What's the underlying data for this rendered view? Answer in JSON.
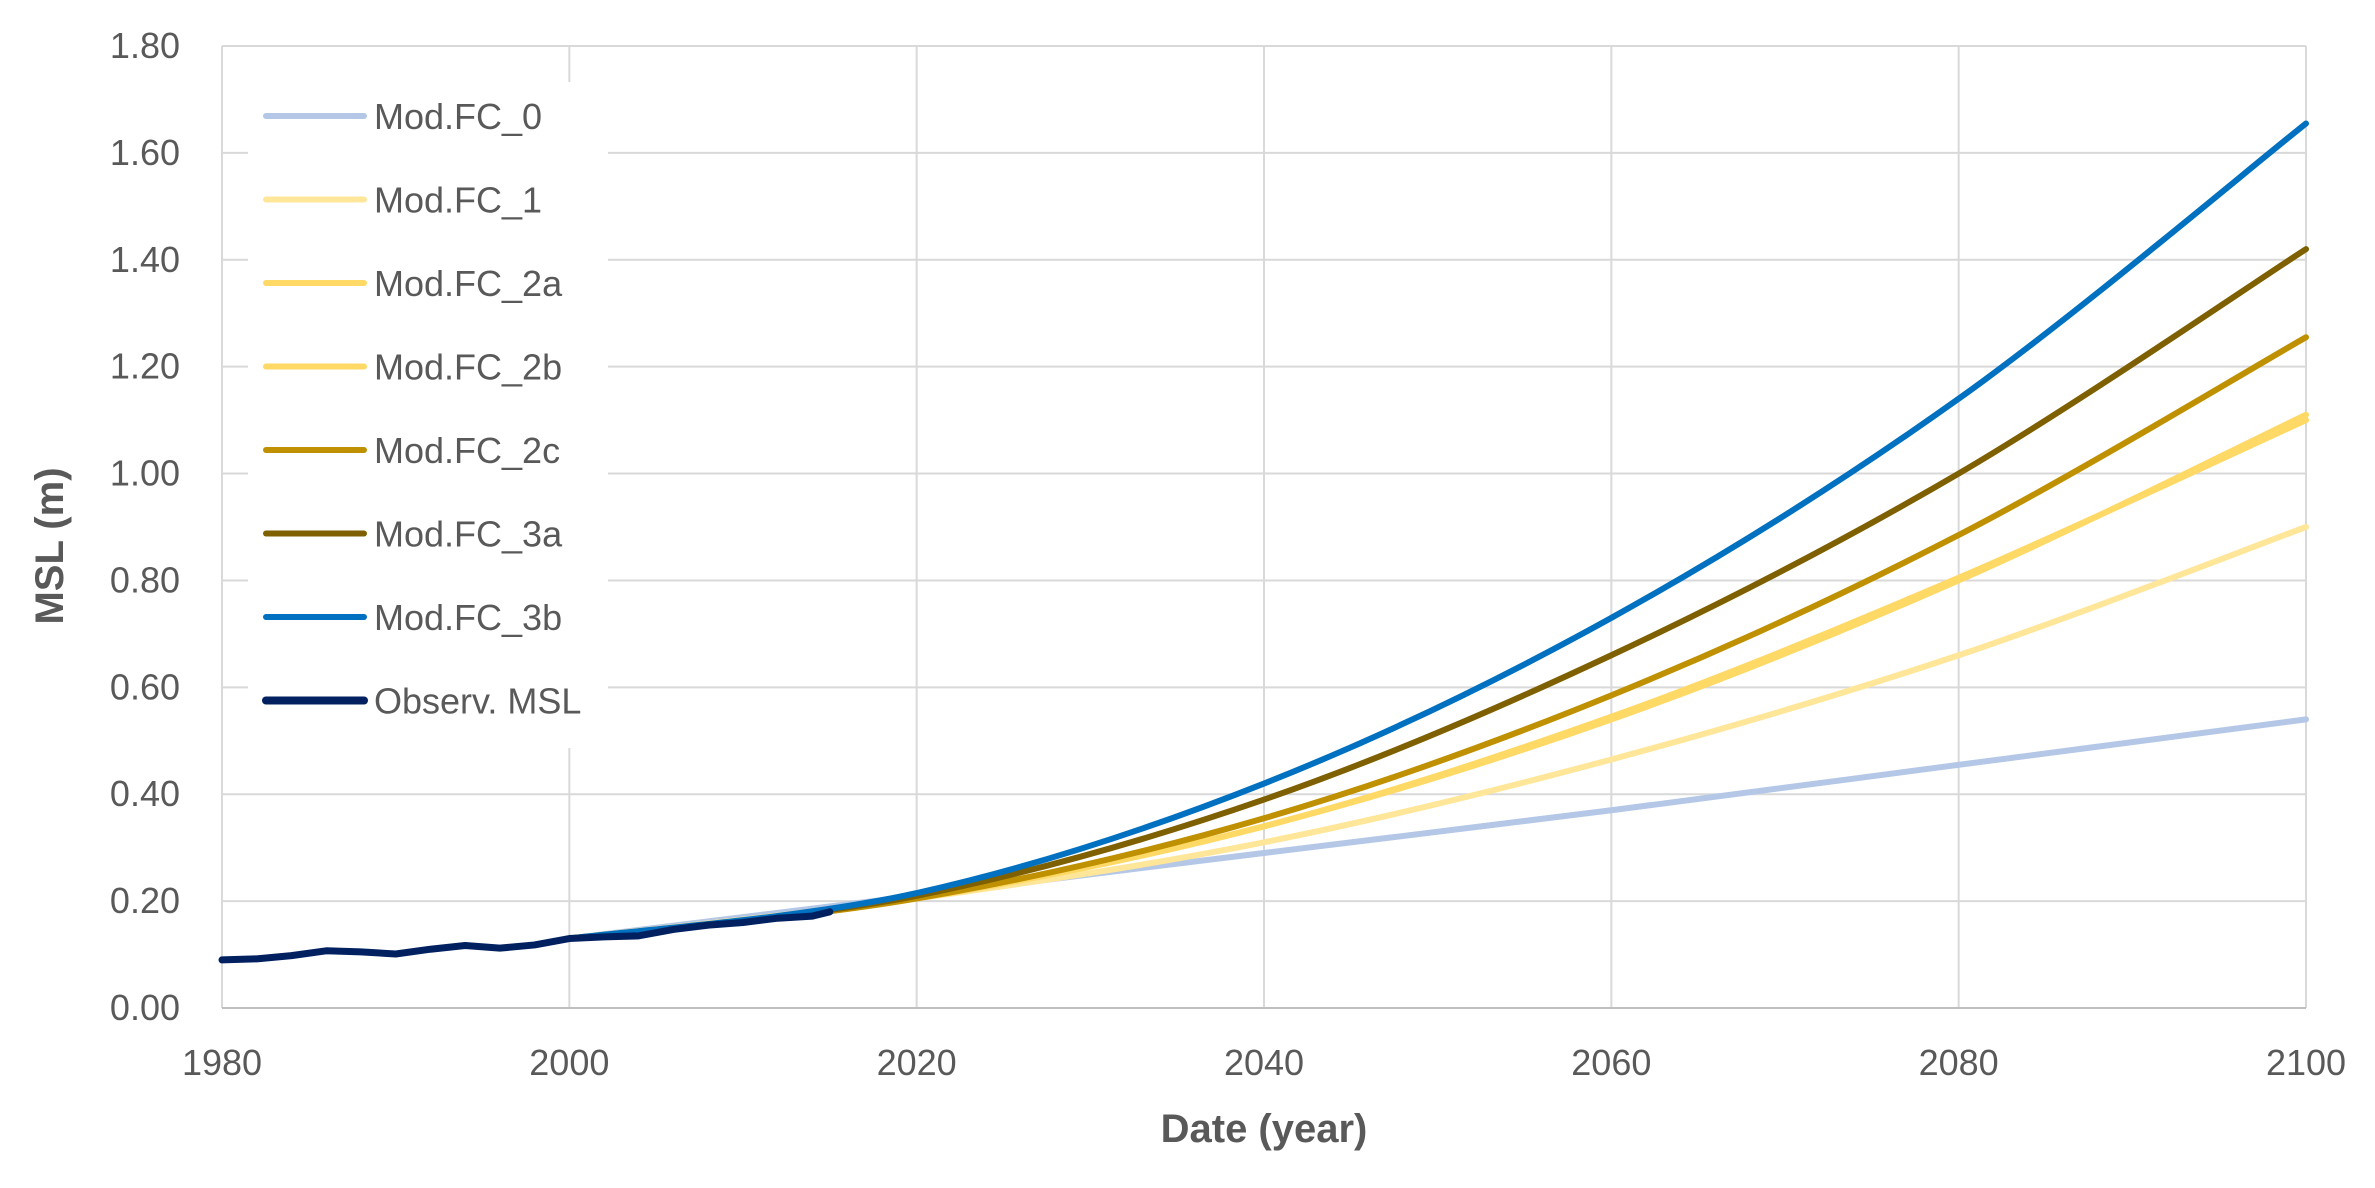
{
  "chart_data": {
    "type": "line",
    "xlabel": "Date (year)",
    "ylabel": "MSL (m)",
    "xlim": [
      1980,
      2100
    ],
    "ylim": [
      0,
      1.8
    ],
    "x_ticks": [
      "1980",
      "2000",
      "2020",
      "2040",
      "2060",
      "2080",
      "2100"
    ],
    "y_ticks": [
      "0.00",
      "0.20",
      "0.40",
      "0.60",
      "0.80",
      "1.00",
      "1.20",
      "1.40",
      "1.60",
      "1.80"
    ],
    "grid": true,
    "legend_position": "top-left",
    "series": [
      {
        "name": "Mod.FC_0",
        "color": "#b4c7e7",
        "x": [
          2000,
          2020,
          2040,
          2060,
          2080,
          2100
        ],
        "y": [
          0.13,
          0.21,
          0.29,
          0.37,
          0.455,
          0.54
        ]
      },
      {
        "name": "Mod.FC_1",
        "color": "#ffe699",
        "x": [
          2000,
          2020,
          2040,
          2060,
          2080,
          2100
        ],
        "y": [
          0.13,
          0.205,
          0.31,
          0.465,
          0.66,
          0.9
        ]
      },
      {
        "name": "Mod.FC_2a",
        "color": "#ffd966",
        "x": [
          2000,
          2020,
          2040,
          2060,
          2080,
          2100
        ],
        "y": [
          0.13,
          0.205,
          0.34,
          0.54,
          0.8,
          1.11
        ]
      },
      {
        "name": "Mod.FC_2b",
        "color": "#ffd966",
        "x": [
          2000,
          2020,
          2040,
          2060,
          2080,
          2100
        ],
        "y": [
          0.13,
          0.205,
          0.34,
          0.545,
          0.805,
          1.1
        ]
      },
      {
        "name": "Mod.FC_2c",
        "color": "#bf9000",
        "x": [
          2000,
          2020,
          2040,
          2060,
          2080,
          2100
        ],
        "y": [
          0.13,
          0.205,
          0.355,
          0.585,
          0.885,
          1.255
        ]
      },
      {
        "name": "Mod.FC_3a",
        "color": "#7f6000",
        "x": [
          2000,
          2020,
          2040,
          2060,
          2080,
          2100
        ],
        "y": [
          0.13,
          0.21,
          0.39,
          0.66,
          1.0,
          1.42
        ]
      },
      {
        "name": "Mod.FC_3b",
        "color": "#0070c0",
        "x": [
          2000,
          2020,
          2040,
          2060,
          2080,
          2100
        ],
        "y": [
          0.13,
          0.215,
          0.42,
          0.73,
          1.14,
          1.655
        ]
      },
      {
        "name": "Observ. MSL",
        "color": "#002060",
        "x": [
          1980,
          1982,
          1984,
          1986,
          1988,
          1990,
          1992,
          1994,
          1996,
          1998,
          2000,
          2002,
          2004,
          2006,
          2008,
          2010,
          2012,
          2014,
          2015
        ],
        "y": [
          0.09,
          0.092,
          0.098,
          0.107,
          0.105,
          0.101,
          0.11,
          0.117,
          0.112,
          0.118,
          0.13,
          0.133,
          0.135,
          0.147,
          0.155,
          0.16,
          0.168,
          0.172,
          0.18
        ]
      }
    ]
  }
}
